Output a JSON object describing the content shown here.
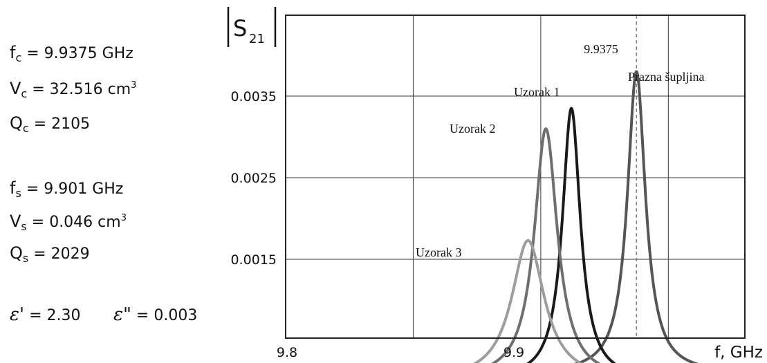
{
  "params": {
    "fc": {
      "sym": "f",
      "sub": "c",
      "value": "= 9.9375 GHz"
    },
    "Vc": {
      "sym": "V",
      "sub": "c",
      "value": "= 32.516 cm",
      "sup": "3"
    },
    "Qc": {
      "sym": "Q",
      "sub": "c",
      "value": "= 2105"
    },
    "fs": {
      "sym": "f",
      "sub": "s",
      "value": "= 9.901 GHz"
    },
    "Vs": {
      "sym": "V",
      "sub": "s",
      "value": "= 0.046 cm",
      "sup": "3"
    },
    "Qs": {
      "sym": "Q",
      "sub": "s",
      "value": "= 2029"
    },
    "eps1": {
      "sym": "ε",
      "prime": "'",
      "value": "= 2.30"
    },
    "eps2": {
      "sym": "ε",
      "prime": "\"",
      "value": "= 0.003"
    }
  },
  "chart_data": {
    "type": "line",
    "title": "",
    "ylabel": "S",
    "ylabel_sub": "21",
    "xlabel": "f, GHz",
    "xlim": [
      9.8,
      9.98
    ],
    "ylim": [
      0.0002,
      0.0046
    ],
    "x_ticks": [
      "9.8",
      "9.9"
    ],
    "y_ticks": [
      "0.0015",
      "0.0025",
      "0.0035"
    ],
    "grid": true,
    "marker_line": {
      "x": 9.9375,
      "label": "9.9375"
    },
    "series": [
      {
        "name": "Prazna šupljina",
        "peak_x": 9.9375,
        "peak_y": 0.0038,
        "hw": 0.0043,
        "base": 0.0001,
        "color": "#555555"
      },
      {
        "name": "Uzorak 1",
        "peak_x": 9.912,
        "peak_y": 0.00335,
        "hw": 0.0043,
        "base": 2e-05,
        "color": "#1a1a1a"
      },
      {
        "name": "Uzorak 2",
        "peak_x": 9.902,
        "peak_y": 0.0031,
        "hw": 0.0055,
        "base": 2e-05,
        "color": "#6f6f6f"
      },
      {
        "name": "Uzorak 3",
        "peak_x": 9.895,
        "peak_y": 0.00173,
        "hw": 0.0078,
        "base": 1e-05,
        "color": "#9d9d9d"
      }
    ]
  }
}
